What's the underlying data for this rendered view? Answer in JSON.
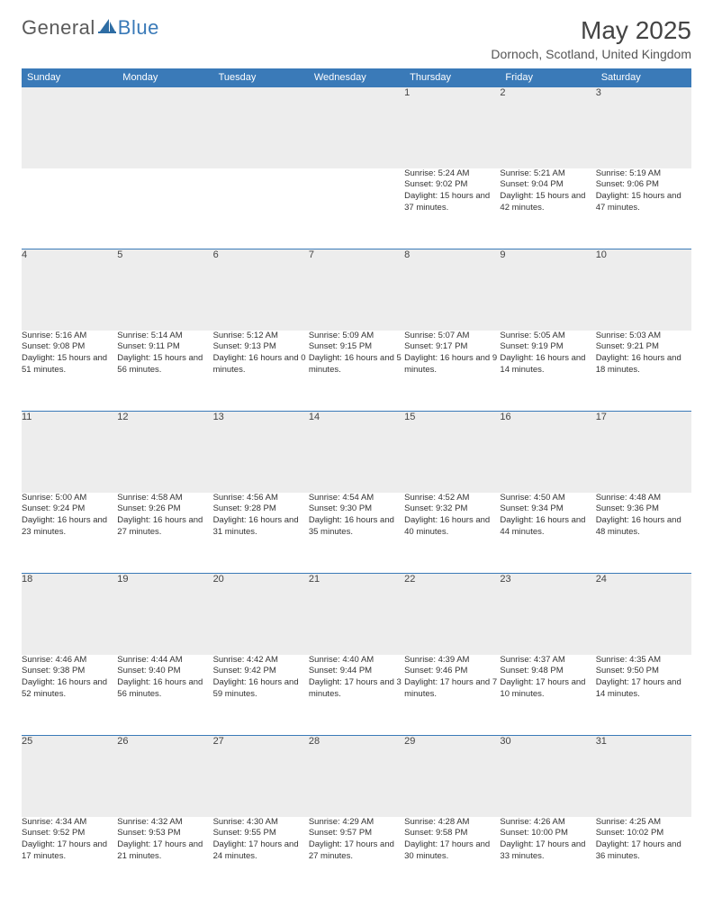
{
  "brand": {
    "part1": "General",
    "part2": "Blue"
  },
  "title": "May 2025",
  "location": "Dornoch, Scotland, United Kingdom",
  "colors": {
    "header_bg": "#3a7ab8",
    "daynum_bg": "#ededed",
    "text": "#333333"
  },
  "day_names": [
    "Sunday",
    "Monday",
    "Tuesday",
    "Wednesday",
    "Thursday",
    "Friday",
    "Saturday"
  ],
  "first_weekday": 4,
  "days": [
    {
      "n": 1,
      "sr": "5:24 AM",
      "ss": "9:02 PM",
      "dl": "15 hours and 37 minutes."
    },
    {
      "n": 2,
      "sr": "5:21 AM",
      "ss": "9:04 PM",
      "dl": "15 hours and 42 minutes."
    },
    {
      "n": 3,
      "sr": "5:19 AM",
      "ss": "9:06 PM",
      "dl": "15 hours and 47 minutes."
    },
    {
      "n": 4,
      "sr": "5:16 AM",
      "ss": "9:08 PM",
      "dl": "15 hours and 51 minutes."
    },
    {
      "n": 5,
      "sr": "5:14 AM",
      "ss": "9:11 PM",
      "dl": "15 hours and 56 minutes."
    },
    {
      "n": 6,
      "sr": "5:12 AM",
      "ss": "9:13 PM",
      "dl": "16 hours and 0 minutes."
    },
    {
      "n": 7,
      "sr": "5:09 AM",
      "ss": "9:15 PM",
      "dl": "16 hours and 5 minutes."
    },
    {
      "n": 8,
      "sr": "5:07 AM",
      "ss": "9:17 PM",
      "dl": "16 hours and 9 minutes."
    },
    {
      "n": 9,
      "sr": "5:05 AM",
      "ss": "9:19 PM",
      "dl": "16 hours and 14 minutes."
    },
    {
      "n": 10,
      "sr": "5:03 AM",
      "ss": "9:21 PM",
      "dl": "16 hours and 18 minutes."
    },
    {
      "n": 11,
      "sr": "5:00 AM",
      "ss": "9:24 PM",
      "dl": "16 hours and 23 minutes."
    },
    {
      "n": 12,
      "sr": "4:58 AM",
      "ss": "9:26 PM",
      "dl": "16 hours and 27 minutes."
    },
    {
      "n": 13,
      "sr": "4:56 AM",
      "ss": "9:28 PM",
      "dl": "16 hours and 31 minutes."
    },
    {
      "n": 14,
      "sr": "4:54 AM",
      "ss": "9:30 PM",
      "dl": "16 hours and 35 minutes."
    },
    {
      "n": 15,
      "sr": "4:52 AM",
      "ss": "9:32 PM",
      "dl": "16 hours and 40 minutes."
    },
    {
      "n": 16,
      "sr": "4:50 AM",
      "ss": "9:34 PM",
      "dl": "16 hours and 44 minutes."
    },
    {
      "n": 17,
      "sr": "4:48 AM",
      "ss": "9:36 PM",
      "dl": "16 hours and 48 minutes."
    },
    {
      "n": 18,
      "sr": "4:46 AM",
      "ss": "9:38 PM",
      "dl": "16 hours and 52 minutes."
    },
    {
      "n": 19,
      "sr": "4:44 AM",
      "ss": "9:40 PM",
      "dl": "16 hours and 56 minutes."
    },
    {
      "n": 20,
      "sr": "4:42 AM",
      "ss": "9:42 PM",
      "dl": "16 hours and 59 minutes."
    },
    {
      "n": 21,
      "sr": "4:40 AM",
      "ss": "9:44 PM",
      "dl": "17 hours and 3 minutes."
    },
    {
      "n": 22,
      "sr": "4:39 AM",
      "ss": "9:46 PM",
      "dl": "17 hours and 7 minutes."
    },
    {
      "n": 23,
      "sr": "4:37 AM",
      "ss": "9:48 PM",
      "dl": "17 hours and 10 minutes."
    },
    {
      "n": 24,
      "sr": "4:35 AM",
      "ss": "9:50 PM",
      "dl": "17 hours and 14 minutes."
    },
    {
      "n": 25,
      "sr": "4:34 AM",
      "ss": "9:52 PM",
      "dl": "17 hours and 17 minutes."
    },
    {
      "n": 26,
      "sr": "4:32 AM",
      "ss": "9:53 PM",
      "dl": "17 hours and 21 minutes."
    },
    {
      "n": 27,
      "sr": "4:30 AM",
      "ss": "9:55 PM",
      "dl": "17 hours and 24 minutes."
    },
    {
      "n": 28,
      "sr": "4:29 AM",
      "ss": "9:57 PM",
      "dl": "17 hours and 27 minutes."
    },
    {
      "n": 29,
      "sr": "4:28 AM",
      "ss": "9:58 PM",
      "dl": "17 hours and 30 minutes."
    },
    {
      "n": 30,
      "sr": "4:26 AM",
      "ss": "10:00 PM",
      "dl": "17 hours and 33 minutes."
    },
    {
      "n": 31,
      "sr": "4:25 AM",
      "ss": "10:02 PM",
      "dl": "17 hours and 36 minutes."
    }
  ],
  "labels": {
    "sunrise": "Sunrise:",
    "sunset": "Sunset:",
    "daylight": "Daylight:"
  }
}
